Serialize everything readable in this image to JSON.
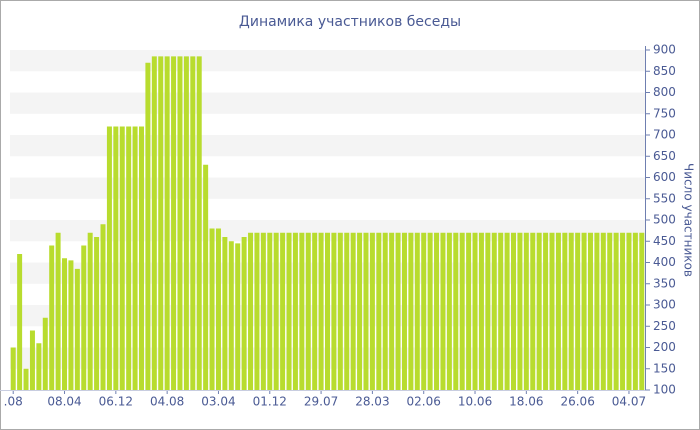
{
  "chart_data": {
    "type": "bar",
    "title": "Динамика участников беседы",
    "y_label": "Число участников",
    "categories": [
      ".08",
      null,
      null,
      null,
      null,
      null,
      null,
      null,
      "08.04",
      null,
      null,
      null,
      null,
      null,
      null,
      null,
      "06.12",
      null,
      null,
      null,
      null,
      null,
      null,
      null,
      "04.08",
      null,
      null,
      null,
      null,
      null,
      null,
      null,
      "03.04",
      null,
      null,
      null,
      null,
      null,
      null,
      null,
      "01.12",
      null,
      null,
      null,
      null,
      null,
      null,
      null,
      "29.07",
      null,
      null,
      null,
      null,
      null,
      null,
      null,
      "28.03",
      null,
      null,
      null,
      null,
      null,
      null,
      null,
      "02.06",
      null,
      null,
      null,
      null,
      null,
      null,
      null,
      "10.06",
      null,
      null,
      null,
      null,
      null,
      null,
      null,
      "18.06",
      null,
      null,
      null,
      null,
      null,
      null,
      null,
      "26.06",
      null,
      null,
      null,
      null,
      null,
      null,
      null,
      "04.07",
      null,
      null
    ],
    "values": [
      200,
      420,
      150,
      240,
      210,
      270,
      440,
      470,
      410,
      405,
      385,
      440,
      470,
      460,
      490,
      720,
      720,
      720,
      720,
      720,
      720,
      870,
      885,
      885,
      885,
      885,
      885,
      885,
      885,
      885,
      630,
      480,
      480,
      460,
      450,
      445,
      460,
      470,
      470,
      470,
      470,
      470,
      470,
      470,
      470,
      470,
      470,
      470,
      470,
      470,
      470,
      470,
      470,
      470,
      470,
      470,
      470,
      470,
      470,
      470,
      470,
      470,
      470,
      470,
      470,
      470,
      470,
      470,
      470,
      470,
      470,
      470,
      470,
      470,
      470,
      470,
      470,
      470,
      470,
      470,
      470,
      470,
      470,
      470,
      470,
      470,
      470,
      470,
      470,
      470,
      470,
      470,
      470,
      470,
      470,
      470,
      470,
      470,
      470
    ],
    "color": "#b8dc2e",
    "ylim": [
      100,
      900
    ],
    "yticks": [
      100,
      150,
      200,
      250,
      300,
      350,
      400,
      450,
      500,
      550,
      600,
      650,
      700,
      750,
      800,
      850,
      900
    ],
    "grid": true,
    "y_axis_side": "right"
  }
}
